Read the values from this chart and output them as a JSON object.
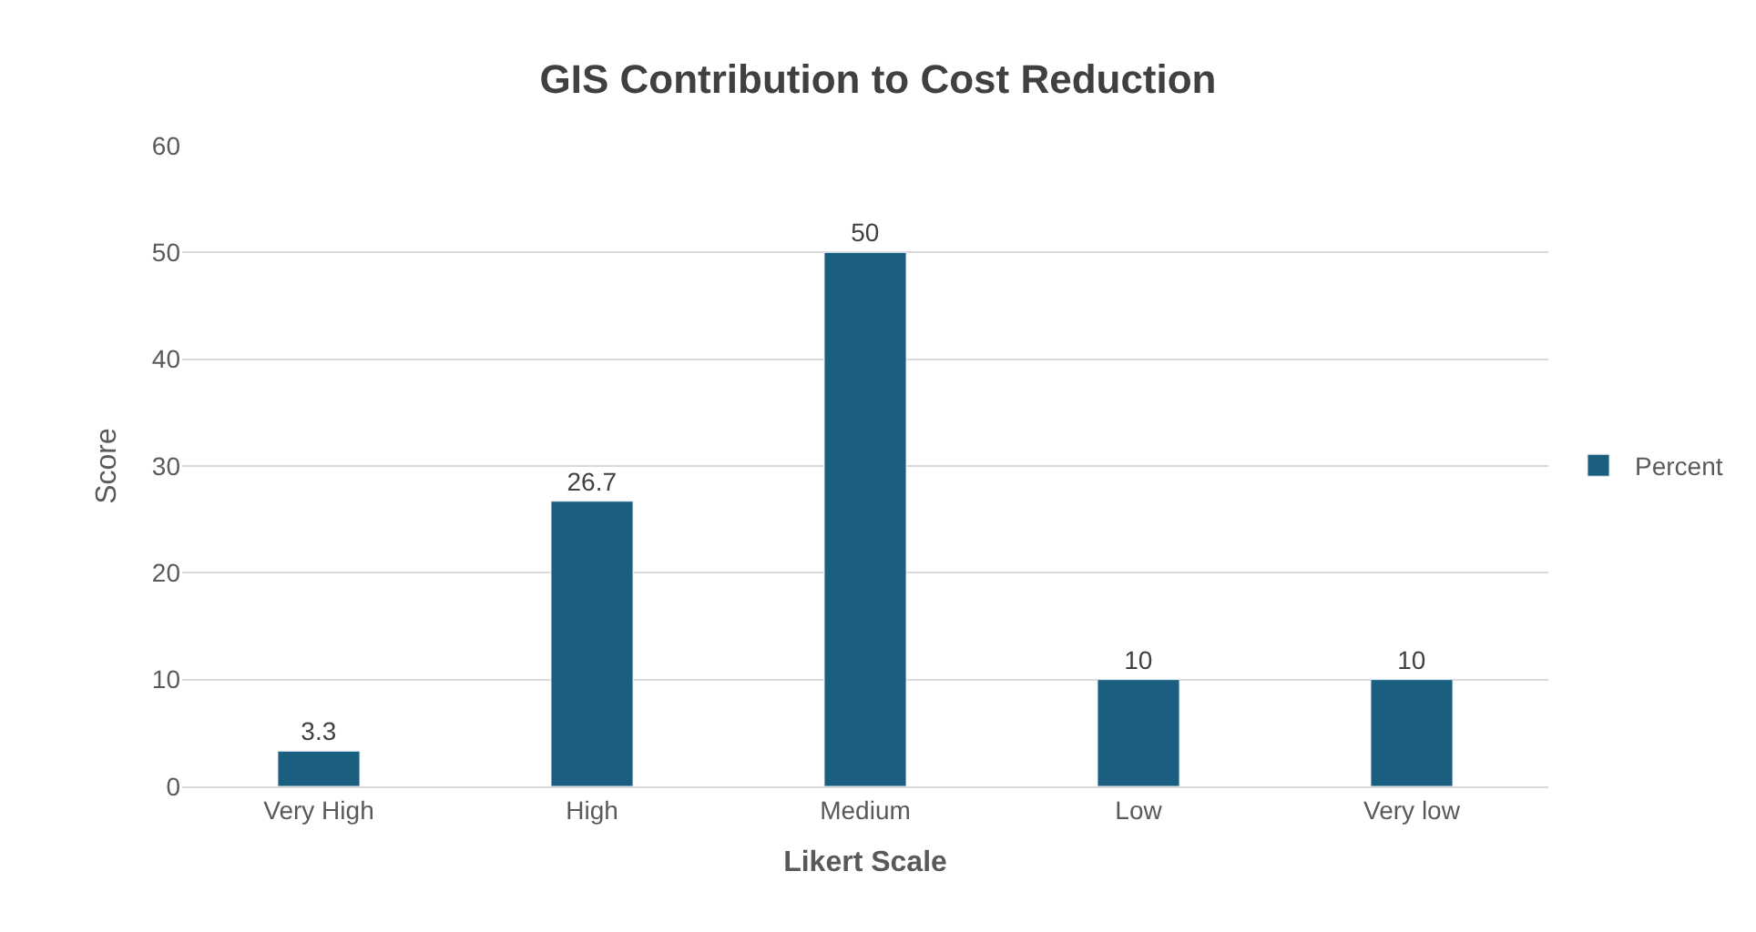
{
  "chart_data": {
    "type": "bar",
    "title": "GIS Contribution to Cost Reduction",
    "xlabel": "Likert Scale",
    "ylabel": "Score",
    "categories": [
      "Very High",
      "High",
      "Medium",
      "Low",
      "Very low"
    ],
    "series": [
      {
        "name": "Percent",
        "color": "#1a5e80",
        "values": [
          3.3,
          26.7,
          50,
          10,
          10
        ]
      }
    ],
    "ylim": [
      0,
      60
    ],
    "yticks": [
      0,
      10,
      20,
      30,
      40,
      50,
      60
    ],
    "grid": "y",
    "legend": "right",
    "data_labels": true
  }
}
